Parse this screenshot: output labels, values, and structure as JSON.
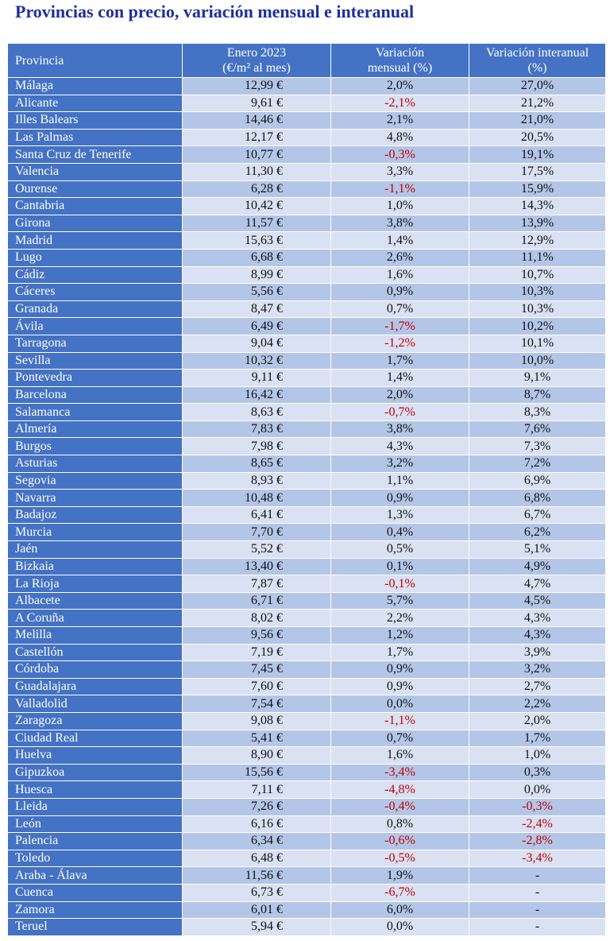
{
  "title": "Provincias con precio, variación mensual e interanual",
  "table": {
    "headers": [
      "Provincia",
      "Enero 2023 (€/m² al mes)",
      "Variación mensual (%)",
      "Variación interanual (%)"
    ],
    "header_lines": [
      [
        "Provincia"
      ],
      [
        "Enero 2023",
        "(€/m² al mes)"
      ],
      [
        "Variación",
        "mensual (%)"
      ],
      [
        "Variación interanual",
        "(%)"
      ]
    ],
    "rows": [
      [
        "Málaga",
        "12,99 €",
        "2,0%",
        "27,0%"
      ],
      [
        "Alicante",
        "9,61 €",
        "-2,1%",
        "21,2%"
      ],
      [
        "Illes Balears",
        "14,46 €",
        "2,1%",
        "21,0%"
      ],
      [
        "Las Palmas",
        "12,17 €",
        "4,8%",
        "20,5%"
      ],
      [
        "Santa Cruz de Tenerife",
        "10,77 €",
        "-0,3%",
        "19,1%"
      ],
      [
        "Valencia",
        "11,30 €",
        "3,3%",
        "17,5%"
      ],
      [
        "Ourense",
        "6,28 €",
        "-1,1%",
        "15,9%"
      ],
      [
        "Cantabria",
        "10,42 €",
        "1,0%",
        "14,3%"
      ],
      [
        "Girona",
        "11,57 €",
        "3,8%",
        "13,9%"
      ],
      [
        "Madrid",
        "15,63 €",
        "1,4%",
        "12,9%"
      ],
      [
        "Lugo",
        "6,68 €",
        "2,6%",
        "11,1%"
      ],
      [
        "Cádiz",
        "8,99 €",
        "1,6%",
        "10,7%"
      ],
      [
        "Cáceres",
        "5,56 €",
        "0,9%",
        "10,3%"
      ],
      [
        "Granada",
        "8,47 €",
        "0,7%",
        "10,3%"
      ],
      [
        "Ávila",
        "6,49 €",
        "-1,7%",
        "10,2%"
      ],
      [
        "Tarragona",
        "9,04 €",
        "-1,2%",
        "10,1%"
      ],
      [
        "Sevilla",
        "10,32 €",
        "1,7%",
        "10,0%"
      ],
      [
        "Pontevedra",
        "9,11 €",
        "1,4%",
        "9,1%"
      ],
      [
        "Barcelona",
        "16,42 €",
        "2,0%",
        "8,7%"
      ],
      [
        "Salamanca",
        "8,63 €",
        "-0,7%",
        "8,3%"
      ],
      [
        "Almería",
        "7,83 €",
        "3,8%",
        "7,6%"
      ],
      [
        "Burgos",
        "7,98 €",
        "4,3%",
        "7,3%"
      ],
      [
        "Asturias",
        "8,65 €",
        "3,2%",
        "7,2%"
      ],
      [
        "Segovia",
        "8,93 €",
        "1,1%",
        "6,9%"
      ],
      [
        "Navarra",
        "10,48 €",
        "0,9%",
        "6,8%"
      ],
      [
        "Badajoz",
        "6,41 €",
        "1,3%",
        "6,7%"
      ],
      [
        "Murcia",
        "7,70 €",
        "0,4%",
        "6,2%"
      ],
      [
        "Jaén",
        "5,52 €",
        "0,5%",
        "5,1%"
      ],
      [
        "Bizkaia",
        "13,40 €",
        "0,1%",
        "4,9%"
      ],
      [
        "La Rioja",
        "7,87 €",
        "-0,1%",
        "4,7%"
      ],
      [
        "Albacete",
        "6,71 €",
        "5,7%",
        "4,5%"
      ],
      [
        "A Coruña",
        "8,02 €",
        "2,2%",
        "4,3%"
      ],
      [
        "Melilla",
        "9,56 €",
        "1,2%",
        "4,3%"
      ],
      [
        "Castellón",
        "7,19 €",
        "1,7%",
        "3,9%"
      ],
      [
        "Córdoba",
        "7,45 €",
        "0,9%",
        "3,2%"
      ],
      [
        "Guadalajara",
        "7,60 €",
        "0,9%",
        "2,7%"
      ],
      [
        "Valladolid",
        "7,54 €",
        "0,0%",
        "2,2%"
      ],
      [
        "Zaragoza",
        "9,08 €",
        "-1,1%",
        "2,0%"
      ],
      [
        "Ciudad Real",
        "5,41 €",
        "0,7%",
        "1,7%"
      ],
      [
        "Huelva",
        "8,90 €",
        "1,6%",
        "1,0%"
      ],
      [
        "Gipuzkoa",
        "15,56 €",
        "-3,4%",
        "0,3%"
      ],
      [
        "Huesca",
        "7,11 €",
        "-4,8%",
        "0,0%"
      ],
      [
        "Lleida",
        "7,26 €",
        "-0,4%",
        "-0,3%"
      ],
      [
        "León",
        "6,16 €",
        "0,8%",
        "-2,4%"
      ],
      [
        "Palencia",
        "6,34 €",
        "-0,6%",
        "-2,8%"
      ],
      [
        "Toledo",
        "6,48 €",
        "-0,5%",
        "-3,4%"
      ],
      [
        "Araba - Álava",
        "11,56 €",
        "1,9%",
        "-"
      ],
      [
        "Cuenca",
        "6,73 €",
        "-6,7%",
        "-"
      ],
      [
        "Zamora",
        "6,01 €",
        "6,0%",
        "-"
      ],
      [
        "Teruel",
        "5,94 €",
        "0,0%",
        "-"
      ]
    ]
  },
  "colors": {
    "title": "#1f2f9c",
    "header_bg": "#4472c4",
    "band_dark": "#b4c6e7",
    "band_light": "#d9e1f2",
    "negative": "#c00000"
  }
}
